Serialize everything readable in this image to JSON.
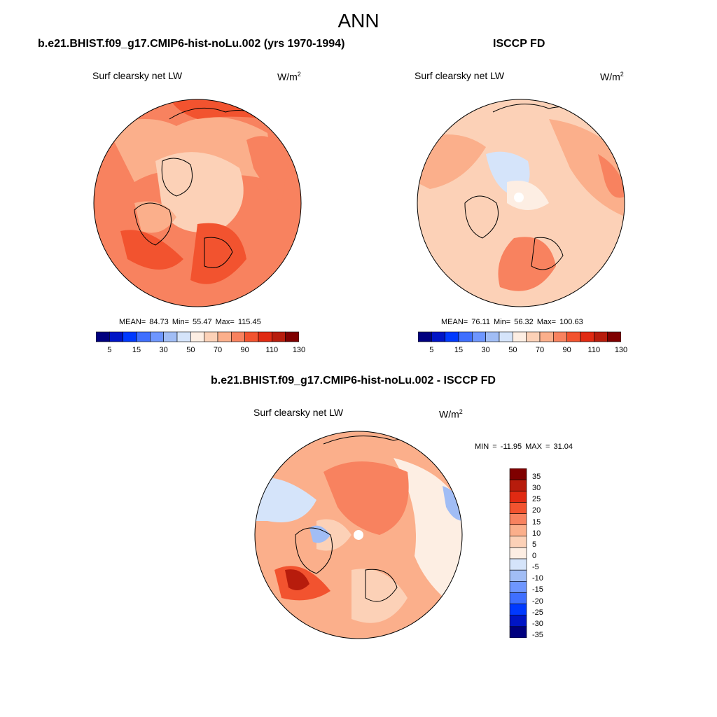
{
  "main_title": "ANN",
  "panels": [
    {
      "title": "b.e21.BHIST.f09_g17.CMIP6-hist-noLu.002 (yrs 1970-1994)",
      "field": "Surf clearsky net LW",
      "units": "W/m",
      "units_exp": "2",
      "stats": "MEAN=  84.73  Min=  55.47  Max= 115.45"
    },
    {
      "title": "ISCCP FD",
      "field": "Surf clearsky net LW",
      "units": "W/m",
      "units_exp": "2",
      "stats": "MEAN=  76.11  Min=  56.32  Max= 100.63"
    },
    {
      "title": "b.e21.BHIST.f09_g17.CMIP6-hist-noLu.002 - ISCCP FD",
      "field": "Surf clearsky net LW",
      "units": "W/m",
      "units_exp": "2",
      "stats": "MIN = -11.95 MAX =  31.04"
    }
  ],
  "colorbar_main": {
    "labels": [
      "5",
      "15",
      "30",
      "50",
      "70",
      "90",
      "110",
      "130"
    ],
    "colors": [
      "#00007f",
      "#0015c6",
      "#0039ff",
      "#3f6fff",
      "#6e96ff",
      "#a1bdf5",
      "#d5e4fa",
      "#fdeee3",
      "#fcd1b7",
      "#fbaf8b",
      "#f8825f",
      "#f2532f",
      "#e02a12",
      "#b71c0c",
      "#7f0000"
    ]
  },
  "colorbar_diff": {
    "labels": [
      "35",
      "30",
      "25",
      "20",
      "15",
      "10",
      "5",
      "0",
      "-5",
      "-10",
      "-15",
      "-20",
      "-25",
      "-30",
      "-35"
    ],
    "colors": [
      "#7f0000",
      "#b71c0c",
      "#e02a12",
      "#f2532f",
      "#f8825f",
      "#fbaf8b",
      "#fcd1b7",
      "#fdeee3",
      "#d5e4fa",
      "#a1bdf5",
      "#6e96ff",
      "#3f6fff",
      "#0039ff",
      "#0015c6",
      "#00007f"
    ]
  }
}
